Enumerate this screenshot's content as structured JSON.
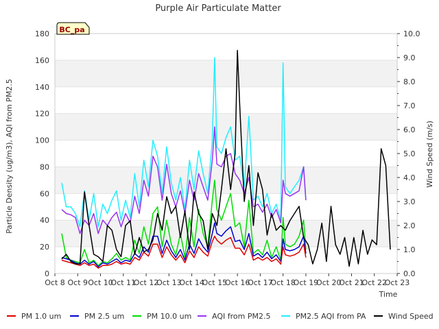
{
  "chart_data": {
    "type": "line",
    "title": "Purple Air Particulate Matter",
    "site_label": "BC_pa",
    "xlabel": "Time",
    "ylabel": "Particle Density (ug/m3), AQI from PM2.5",
    "y2label": "Wind Speed (m/s)",
    "xlim": [
      8,
      23
    ],
    "ylim": [
      0,
      180
    ],
    "y2lim": [
      0,
      10
    ],
    "grid": "horizontal bands",
    "legend": "bottom",
    "x_ticks": [
      "Oct 8",
      "Oct 9",
      "Oct 10",
      "Oct 11",
      "Oct 12",
      "Oct 13",
      "Oct 14",
      "Oct 15",
      "Oct 16",
      "Oct 17",
      "Oct 18",
      "Oct 19",
      "Oct 20",
      "Oct 21",
      "Oct 22",
      "Oct 23"
    ],
    "y_ticks": [
      "0",
      "20",
      "40",
      "60",
      "80",
      "100",
      "120",
      "140",
      "160",
      "180"
    ],
    "y2_ticks": [
      "0.0",
      "1.0",
      "2.0",
      "3.0",
      "4.0",
      "5.0",
      "6.0",
      "7.0",
      "8.0",
      "9.0",
      "10.0"
    ],
    "colors": {
      "pm1": "#dd0000",
      "pm25": "#0000cc",
      "pm10": "#00dd00",
      "aqi": "#9933ee",
      "pa": "#22eeff",
      "wind": "#000000"
    },
    "series": [
      {
        "key": "pa",
        "name": "PM2.5 AQI from PA",
        "axis": "left",
        "x": [
          8.3,
          8.5,
          8.7,
          8.9,
          9.1,
          9.3,
          9.5,
          9.7,
          9.9,
          10.1,
          10.3,
          10.5,
          10.7,
          10.9,
          11.1,
          11.3,
          11.5,
          11.7,
          11.9,
          12.1,
          12.3,
          12.5,
          12.7,
          12.9,
          13.1,
          13.3,
          13.5,
          13.7,
          13.9,
          14.1,
          14.3,
          14.5,
          14.7,
          14.9,
          15.0,
          15.1,
          15.3,
          15.5,
          15.7,
          15.9,
          16.1,
          16.3,
          16.5,
          16.7,
          16.9,
          17.1,
          17.3,
          17.5,
          17.7,
          17.9,
          18.0,
          18.1,
          18.3,
          18.5,
          18.7,
          18.9,
          19.0
        ],
        "y": [
          68,
          50,
          50,
          45,
          35,
          62,
          40,
          60,
          35,
          52,
          45,
          55,
          62,
          40,
          55,
          42,
          75,
          50,
          85,
          65,
          100,
          88,
          60,
          95,
          68,
          55,
          72,
          48,
          85,
          63,
          92,
          75,
          60,
          100,
          162,
          95,
          90,
          102,
          110,
          85,
          88,
          65,
          118,
          55,
          58,
          50,
          60,
          45,
          52,
          40,
          158,
          65,
          60,
          65,
          70,
          80,
          55
        ]
      },
      {
        "key": "aqi",
        "name": "AQI from PM2.5",
        "axis": "left",
        "x": [
          8.3,
          8.5,
          8.7,
          8.9,
          9.1,
          9.3,
          9.5,
          9.7,
          9.9,
          10.1,
          10.3,
          10.5,
          10.7,
          10.9,
          11.1,
          11.3,
          11.5,
          11.7,
          11.9,
          12.1,
          12.3,
          12.5,
          12.7,
          12.9,
          13.1,
          13.3,
          13.5,
          13.7,
          13.9,
          14.1,
          14.3,
          14.5,
          14.7,
          14.9,
          15.0,
          15.1,
          15.3,
          15.5,
          15.7,
          15.9,
          16.1,
          16.3,
          16.5,
          16.7,
          16.9,
          17.1,
          17.3,
          17.5,
          17.7,
          17.9,
          18.0,
          18.1,
          18.3,
          18.5,
          18.7,
          18.9,
          19.0
        ],
        "y": [
          48,
          45,
          44,
          42,
          30,
          40,
          36,
          45,
          30,
          40,
          36,
          42,
          46,
          35,
          45,
          38,
          58,
          45,
          70,
          58,
          88,
          80,
          55,
          82,
          60,
          50,
          62,
          45,
          70,
          55,
          75,
          65,
          55,
          85,
          110,
          82,
          80,
          88,
          90,
          75,
          70,
          60,
          72,
          50,
          52,
          46,
          52,
          42,
          48,
          38,
          70,
          60,
          58,
          60,
          62,
          80,
          55
        ]
      },
      {
        "key": "pm10",
        "name": "PM 10.0 um",
        "axis": "left",
        "x": [
          8.3,
          8.5,
          8.7,
          8.9,
          9.1,
          9.3,
          9.5,
          9.7,
          9.9,
          10.1,
          10.3,
          10.5,
          10.7,
          10.9,
          11.1,
          11.3,
          11.5,
          11.7,
          11.9,
          12.1,
          12.3,
          12.5,
          12.7,
          12.9,
          13.1,
          13.3,
          13.5,
          13.7,
          13.9,
          14.1,
          14.3,
          14.5,
          14.7,
          14.9,
          15.0,
          15.1,
          15.3,
          15.5,
          15.7,
          15.9,
          16.1,
          16.3,
          16.5,
          16.7,
          16.9,
          17.1,
          17.3,
          17.5,
          17.7,
          17.9,
          18.0,
          18.1,
          18.3,
          18.5,
          18.7,
          18.9,
          19.0
        ],
        "y": [
          30,
          12,
          10,
          9,
          8,
          18,
          8,
          10,
          6,
          9,
          8,
          11,
          15,
          10,
          12,
          10,
          25,
          15,
          35,
          22,
          45,
          50,
          20,
          40,
          22,
          14,
          30,
          12,
          42,
          20,
          48,
          30,
          20,
          55,
          70,
          48,
          40,
          50,
          60,
          35,
          38,
          20,
          55,
          15,
          18,
          14,
          25,
          12,
          20,
          10,
          42,
          22,
          20,
          22,
          28,
          40,
          18
        ]
      },
      {
        "key": "pm25",
        "name": "PM 2.5 um",
        "axis": "left",
        "x": [
          8.3,
          8.5,
          8.7,
          8.9,
          9.1,
          9.3,
          9.5,
          9.7,
          9.9,
          10.1,
          10.3,
          10.5,
          10.7,
          10.9,
          11.1,
          11.3,
          11.5,
          11.7,
          11.9,
          12.1,
          12.3,
          12.5,
          12.7,
          12.9,
          13.1,
          13.3,
          13.5,
          13.7,
          13.9,
          14.1,
          14.3,
          14.5,
          14.7,
          14.9,
          15.0,
          15.1,
          15.3,
          15.5,
          15.7,
          15.9,
          16.1,
          16.3,
          16.5,
          16.7,
          16.9,
          17.1,
          17.3,
          17.5,
          17.7,
          17.9,
          18.0,
          18.1,
          18.3,
          18.5,
          18.7,
          18.9,
          19.0
        ],
        "y": [
          12,
          11,
          10,
          8,
          7,
          10,
          7,
          9,
          5,
          8,
          7,
          9,
          11,
          8,
          10,
          9,
          15,
          12,
          20,
          16,
          28,
          28,
          15,
          25,
          17,
          12,
          18,
          10,
          22,
          15,
          26,
          20,
          16,
          30,
          38,
          30,
          28,
          32,
          35,
          24,
          25,
          18,
          30,
          13,
          15,
          12,
          16,
          11,
          14,
          9,
          26,
          18,
          17,
          18,
          20,
          28,
          15
        ]
      },
      {
        "key": "pm1",
        "name": "PM 1.0 um",
        "axis": "left",
        "x": [
          8.3,
          8.5,
          8.7,
          8.9,
          9.1,
          9.3,
          9.5,
          9.7,
          9.9,
          10.1,
          10.3,
          10.5,
          10.7,
          10.9,
          11.1,
          11.3,
          11.5,
          11.7,
          11.9,
          12.1,
          12.3,
          12.5,
          12.7,
          12.9,
          13.1,
          13.3,
          13.5,
          13.7,
          13.9,
          14.1,
          14.3,
          14.5,
          14.7,
          14.9,
          15.0,
          15.1,
          15.3,
          15.5,
          15.7,
          15.9,
          16.1,
          16.3,
          16.5,
          16.7,
          16.9,
          17.1,
          17.3,
          17.5,
          17.7,
          17.9,
          18.0,
          18.1,
          18.3,
          18.5,
          18.7,
          18.9,
          19.0
        ],
        "y": [
          10,
          9,
          8,
          7,
          6,
          8,
          6,
          7,
          4,
          6,
          6,
          7,
          9,
          7,
          8,
          7,
          12,
          10,
          16,
          13,
          22,
          22,
          12,
          20,
          14,
          10,
          14,
          8,
          17,
          12,
          20,
          16,
          13,
          24,
          28,
          25,
          22,
          25,
          27,
          19,
          19,
          14,
          22,
          10,
          12,
          10,
          12,
          9,
          11,
          7,
          20,
          14,
          13,
          14,
          16,
          22,
          12
        ]
      },
      {
        "key": "wind",
        "name": "Wind Speed",
        "axis": "right",
        "x": [
          8.3,
          8.5,
          8.7,
          8.9,
          9.1,
          9.3,
          9.5,
          9.7,
          9.9,
          10.1,
          10.3,
          10.5,
          10.7,
          10.9,
          11.1,
          11.3,
          11.5,
          11.7,
          11.9,
          12.1,
          12.3,
          12.5,
          12.7,
          12.9,
          13.1,
          13.3,
          13.5,
          13.7,
          13.9,
          14.1,
          14.3,
          14.5,
          14.7,
          14.9,
          15.1,
          15.3,
          15.5,
          15.7,
          15.9,
          16.0,
          16.1,
          16.3,
          16.5,
          16.7,
          16.9,
          17.1,
          17.3,
          17.5,
          17.7,
          17.9,
          18.1,
          18.3,
          18.5,
          18.7,
          18.9,
          19.1,
          19.3,
          19.5,
          19.7,
          19.9,
          20.1,
          20.3,
          20.5,
          20.7,
          20.9,
          21.1,
          21.3,
          21.5,
          21.7,
          21.9,
          22.1,
          22.3,
          22.5,
          22.7
        ],
        "y": [
          0.6,
          0.8,
          0.5,
          0.4,
          0.4,
          3.4,
          2.0,
          0.8,
          0.7,
          0.5,
          2.0,
          1.8,
          1.0,
          0.7,
          2.0,
          2.2,
          0.8,
          1.5,
          0.9,
          1.0,
          1.4,
          2.5,
          1.8,
          3.2,
          2.5,
          2.8,
          1.5,
          2.6,
          1.0,
          3.4,
          2.5,
          2.2,
          1.0,
          2.5,
          2.0,
          3.5,
          5.2,
          3.5,
          5.0,
          9.3,
          7.0,
          3.0,
          4.5,
          2.0,
          4.2,
          3.5,
          1.6,
          2.5,
          1.8,
          2.0,
          1.8,
          2.2,
          2.5,
          2.8,
          1.5,
          1.2,
          0.4,
          1.0,
          2.1,
          0.5,
          2.8,
          1.2,
          0.8,
          1.5,
          0.3,
          1.5,
          0.4,
          1.8,
          0.8,
          1.4,
          1.2,
          5.2,
          4.5,
          1.0
        ]
      }
    ]
  }
}
